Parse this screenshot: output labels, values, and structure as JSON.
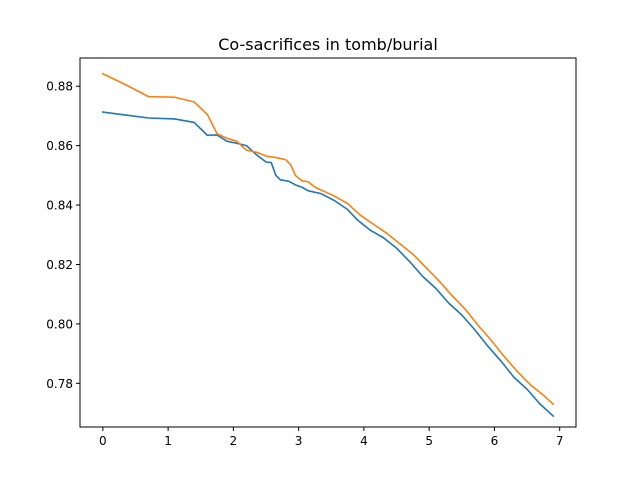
{
  "chart_data": {
    "type": "line",
    "title": "Co-sacrifices in tomb/burial",
    "xlabel": "",
    "ylabel": "",
    "xlim": [
      -0.35,
      7.25
    ],
    "ylim": [
      0.7653,
      0.8895
    ],
    "grid": false,
    "legend": "none",
    "x_ticks": [
      0,
      1,
      2,
      3,
      4,
      5,
      6,
      7
    ],
    "x_tick_labels": [
      "0",
      "1",
      "2",
      "3",
      "4",
      "5",
      "6",
      "7"
    ],
    "y_ticks": [
      0.78,
      0.8,
      0.82,
      0.84,
      0.86,
      0.88
    ],
    "y_tick_labels": [
      "0.78",
      "0.80",
      "0.82",
      "0.84",
      "0.86",
      "0.88"
    ],
    "series": [
      {
        "color": "#1f77b4",
        "points": [
          [
            0.0,
            0.8713
          ],
          [
            0.35,
            0.8703
          ],
          [
            0.7,
            0.8693
          ],
          [
            1.1,
            0.869
          ],
          [
            1.4,
            0.8678
          ],
          [
            1.6,
            0.8635
          ],
          [
            1.75,
            0.8636
          ],
          [
            1.9,
            0.8615
          ],
          [
            2.05,
            0.8608
          ],
          [
            2.2,
            0.86
          ],
          [
            2.35,
            0.857
          ],
          [
            2.5,
            0.8545
          ],
          [
            2.58,
            0.8543
          ],
          [
            2.65,
            0.85
          ],
          [
            2.72,
            0.8485
          ],
          [
            2.85,
            0.848
          ],
          [
            2.95,
            0.8468
          ],
          [
            3.05,
            0.846
          ],
          [
            3.15,
            0.8448
          ],
          [
            3.35,
            0.8438
          ],
          [
            3.55,
            0.8415
          ],
          [
            3.75,
            0.8385
          ],
          [
            3.9,
            0.835
          ],
          [
            4.1,
            0.8315
          ],
          [
            4.3,
            0.829
          ],
          [
            4.5,
            0.8255
          ],
          [
            4.7,
            0.821
          ],
          [
            4.9,
            0.816
          ],
          [
            5.1,
            0.812
          ],
          [
            5.3,
            0.807
          ],
          [
            5.5,
            0.803
          ],
          [
            5.7,
            0.798
          ],
          [
            5.9,
            0.7925
          ],
          [
            6.1,
            0.7875
          ],
          [
            6.3,
            0.782
          ],
          [
            6.5,
            0.778
          ],
          [
            6.7,
            0.773
          ],
          [
            6.9,
            0.769
          ]
        ]
      },
      {
        "color": "#ff7f0e",
        "points": [
          [
            0.0,
            0.8842
          ],
          [
            0.35,
            0.8805
          ],
          [
            0.7,
            0.8765
          ],
          [
            1.1,
            0.8763
          ],
          [
            1.4,
            0.8747
          ],
          [
            1.6,
            0.8705
          ],
          [
            1.75,
            0.864
          ],
          [
            1.9,
            0.8625
          ],
          [
            2.05,
            0.8615
          ],
          [
            2.2,
            0.8585
          ],
          [
            2.35,
            0.8578
          ],
          [
            2.5,
            0.8565
          ],
          [
            2.65,
            0.856
          ],
          [
            2.8,
            0.8553
          ],
          [
            2.88,
            0.8535
          ],
          [
            2.95,
            0.85
          ],
          [
            3.05,
            0.8482
          ],
          [
            3.15,
            0.8478
          ],
          [
            3.25,
            0.846
          ],
          [
            3.4,
            0.8445
          ],
          [
            3.55,
            0.843
          ],
          [
            3.75,
            0.8405
          ],
          [
            3.95,
            0.8365
          ],
          [
            4.15,
            0.8335
          ],
          [
            4.35,
            0.8305
          ],
          [
            4.55,
            0.827
          ],
          [
            4.75,
            0.8235
          ],
          [
            4.95,
            0.819
          ],
          [
            5.15,
            0.8145
          ],
          [
            5.35,
            0.8095
          ],
          [
            5.55,
            0.805
          ],
          [
            5.75,
            0.7995
          ],
          [
            5.95,
            0.7945
          ],
          [
            6.15,
            0.789
          ],
          [
            6.35,
            0.784
          ],
          [
            6.55,
            0.7795
          ],
          [
            6.75,
            0.776
          ],
          [
            6.9,
            0.773
          ]
        ]
      }
    ]
  }
}
